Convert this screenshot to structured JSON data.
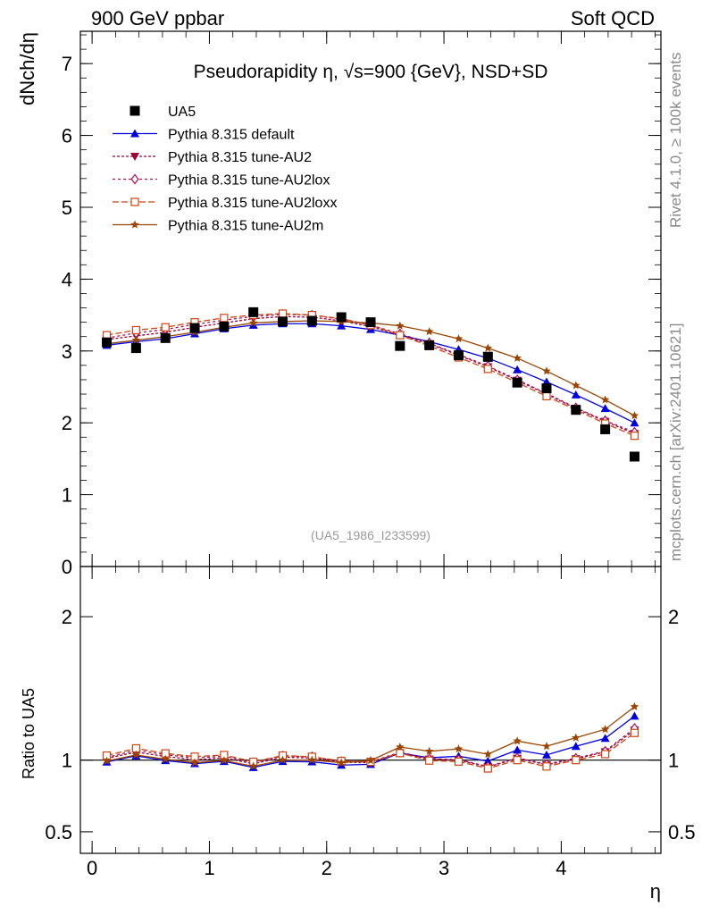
{
  "header": {
    "left": "900 GeV ppbar",
    "right": "Soft QCD"
  },
  "side_labels": {
    "rivet": "Rivet 4.1.0, ≥ 100k events",
    "mcplots": "mcplots.cern.ch [arXiv:2401.10621]"
  },
  "chart_data": {
    "type": "line",
    "title_prefix": "Pseudorapidity",
    "title_eta": "η",
    "title_sqrt": "√s",
    "title_suffix": "=900 {GeV}, NSD+SD",
    "reference_label": "(UA5_1986_I233599)",
    "ylabel_main": "dNch/dη",
    "ylabel_ratio": "Ratio to UA5",
    "xlabel": "η",
    "xlim": [
      -0.1,
      4.85
    ],
    "ylim_main": [
      0,
      7.45
    ],
    "ylim_ratio": [
      0.35,
      2.35
    ],
    "x_ticks": [
      {
        "value": 0,
        "label": "0"
      },
      {
        "value": 1,
        "label": "1"
      },
      {
        "value": 2,
        "label": "2"
      },
      {
        "value": 3,
        "label": "3"
      },
      {
        "value": 4,
        "label": "4"
      }
    ],
    "y_ticks_main": [
      {
        "value": 0,
        "label": "0"
      },
      {
        "value": 1,
        "label": "1"
      },
      {
        "value": 2,
        "label": "2"
      },
      {
        "value": 3,
        "label": "3"
      },
      {
        "value": 4,
        "label": "4"
      },
      {
        "value": 5,
        "label": "5"
      },
      {
        "value": 6,
        "label": "6"
      },
      {
        "value": 7,
        "label": "7"
      }
    ],
    "y_ticks_ratio": [
      {
        "value": 0.5,
        "label": "0.5"
      },
      {
        "value": 1,
        "label": "1"
      },
      {
        "value": 2,
        "label": "2"
      }
    ],
    "x": [
      0.125,
      0.375,
      0.625,
      0.875,
      1.125,
      1.375,
      1.625,
      1.875,
      2.125,
      2.375,
      2.625,
      2.875,
      3.125,
      3.375,
      3.625,
      3.875,
      4.125,
      4.375,
      4.625
    ],
    "data": {
      "name": "UA5",
      "values": [
        3.12,
        3.04,
        3.18,
        3.32,
        3.34,
        3.54,
        3.41,
        3.42,
        3.47,
        3.4,
        3.07,
        3.08,
        2.94,
        2.92,
        2.56,
        2.48,
        2.18,
        1.91,
        1.53
      ]
    },
    "series": [
      {
        "name": "Pythia 8.315 default",
        "color": "#0000dd",
        "marker": "triangle",
        "dash": "",
        "values": [
          3.08,
          3.13,
          3.17,
          3.24,
          3.31,
          3.36,
          3.38,
          3.38,
          3.35,
          3.3,
          3.22,
          3.13,
          3.02,
          2.9,
          2.74,
          2.57,
          2.39,
          2.2,
          2.0
        ]
      },
      {
        "name": "Pythia 8.315 tune-AU2",
        "color": "#990033",
        "marker": "triangle-down",
        "dash": "3,2",
        "values": [
          3.16,
          3.21,
          3.26,
          3.33,
          3.39,
          3.45,
          3.48,
          3.47,
          3.42,
          3.34,
          3.22,
          3.1,
          2.94,
          2.78,
          2.59,
          2.4,
          2.2,
          2.02,
          1.85
        ]
      },
      {
        "name": "Pythia 8.315 tune-AU2lox",
        "color": "#aa1155",
        "marker": "diamond",
        "dash": "3,3",
        "values": [
          3.18,
          3.25,
          3.3,
          3.37,
          3.43,
          3.48,
          3.51,
          3.5,
          3.44,
          3.36,
          3.24,
          3.11,
          2.95,
          2.79,
          2.6,
          2.41,
          2.21,
          2.03,
          1.87
        ]
      },
      {
        "name": "Pythia 8.315 tune-AU2loxx",
        "color": "#cc4411",
        "marker": "square-open",
        "dash": "7,3",
        "values": [
          3.22,
          3.29,
          3.33,
          3.4,
          3.46,
          3.5,
          3.52,
          3.5,
          3.45,
          3.36,
          3.22,
          3.07,
          2.91,
          2.75,
          2.56,
          2.37,
          2.18,
          1.99,
          1.82
        ]
      },
      {
        "name": "Pythia 8.315 tune-AU2m",
        "color": "#994400",
        "marker": "star",
        "dash": "",
        "values": [
          3.1,
          3.15,
          3.2,
          3.26,
          3.33,
          3.39,
          3.41,
          3.42,
          3.41,
          3.39,
          3.35,
          3.27,
          3.17,
          3.04,
          2.9,
          2.72,
          2.52,
          2.32,
          2.1
        ]
      }
    ]
  }
}
